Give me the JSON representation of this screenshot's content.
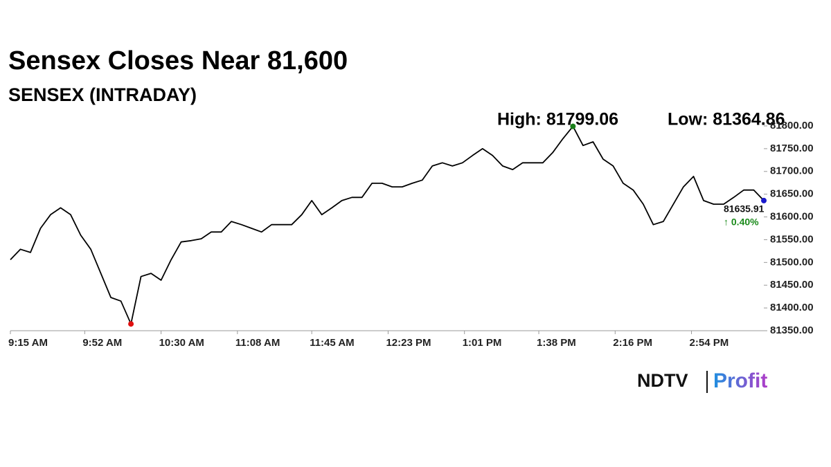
{
  "chart_data": {
    "type": "line",
    "title": "Sensex Closes Near 81,600",
    "subtitle": "SENSEX (INTRADAY)",
    "annotations": {
      "high": "High: 81799.06",
      "low": "Low: 81364.86",
      "change": "↑ 0.40%"
    },
    "logo": {
      "left": "NDTV",
      "right": "Profit"
    },
    "x": [
      "9:15 AM",
      "9:20 AM",
      "9:25 AM",
      "9:30 AM",
      "9:35 AM",
      "9:40 AM",
      "9:45 AM",
      "9:50 AM",
      "9:55 AM",
      "10:00 AM",
      "10:05 AM",
      "10:10 AM",
      "10:15 AM",
      "10:20 AM",
      "10:25 AM",
      "10:30 AM",
      "10:35 AM",
      "10:40 AM",
      "10:45 AM",
      "10:50 AM",
      "10:55 AM",
      "11:00 AM",
      "11:05 AM",
      "11:10 AM",
      "11:15 AM",
      "11:20 AM",
      "11:25 AM",
      "11:30 AM",
      "11:35 AM",
      "11:40 AM",
      "11:45 AM",
      "11:50 AM",
      "11:55 AM",
      "12:00 PM",
      "12:05 PM",
      "12:10 PM",
      "12:15 PM",
      "12:20 PM",
      "12:25 PM",
      "12:30 PM",
      "12:35 PM",
      "12:40 PM",
      "12:45 PM",
      "12:50 PM",
      "12:55 PM",
      "1:00 PM",
      "1:05 PM",
      "1:10 PM",
      "1:15 PM",
      "1:20 PM",
      "1:25 PM",
      "1:30 PM",
      "1:35 PM",
      "1:40 PM",
      "1:45 PM",
      "1:50 PM",
      "1:55 PM",
      "2:00 PM",
      "2:05 PM",
      "2:10 PM",
      "2:15 PM",
      "2:20 PM",
      "2:25 PM",
      "2:30 PM",
      "2:35 PM",
      "2:40 PM",
      "2:45 PM",
      "2:50 PM",
      "2:55 PM",
      "3:00 PM",
      "3:05 PM",
      "3:10 PM",
      "3:15 PM",
      "3:20 PM",
      "3:25 PM",
      "3:30 PM"
    ],
    "series": [
      {
        "name": "SENSEX",
        "color": "#000000",
        "values": [
          81506,
          81529,
          81522,
          81575,
          81605,
          81620,
          81605,
          81560,
          81529,
          81476,
          81423,
          81415,
          81364.86,
          81469,
          81476,
          81461,
          81506,
          81545,
          81548,
          81552,
          81567,
          81567,
          81590,
          81583,
          81575,
          81567,
          81583,
          81583,
          81583,
          81605,
          81636,
          81605,
          81620,
          81636,
          81643,
          81643,
          81674,
          81674,
          81666,
          81666,
          81674,
          81681,
          81712,
          81719,
          81712,
          81719,
          81735,
          81750,
          81735,
          81712,
          81704,
          81719,
          81719,
          81719,
          81742,
          81772,
          81799.06,
          81757,
          81765,
          81727,
          81712,
          81674,
          81659,
          81628,
          81583,
          81590,
          81628,
          81666,
          81689,
          81636,
          81628,
          81628,
          81643,
          81659,
          81659,
          81635.91
        ]
      }
    ],
    "markers": {
      "high_index": 56,
      "low_index": 12,
      "close_index": 75,
      "high_color": "#1a7f1a",
      "low_color": "#e01010",
      "close_color": "#1a1acc"
    },
    "change_color": "#1a8a1a",
    "xlim": [
      "9:15 AM",
      "3:30 PM"
    ],
    "xticks": [
      "9:15 AM",
      "9:52 AM",
      "10:30 AM",
      "11:08 AM",
      "11:45 AM",
      "12:23 PM",
      "1:01 PM",
      "1:38 PM",
      "2:16 PM",
      "2:54 PM"
    ],
    "ylim": [
      81350,
      81800
    ],
    "yticks": [
      {
        "value": 81350,
        "label": "81350.00"
      },
      {
        "value": 81400,
        "label": "81400.00"
      },
      {
        "value": 81450,
        "label": "81450.00"
      },
      {
        "value": 81500,
        "label": "81500.00"
      },
      {
        "value": 81550,
        "label": "81550.00"
      },
      {
        "value": 81600,
        "label": "81600.00"
      },
      {
        "value": 81650,
        "label": "81650.00"
      },
      {
        "value": 81700,
        "label": "81700.00"
      },
      {
        "value": 81750,
        "label": "81750.00"
      },
      {
        "value": 81800,
        "label": "81800.00"
      }
    ],
    "grid": false
  }
}
